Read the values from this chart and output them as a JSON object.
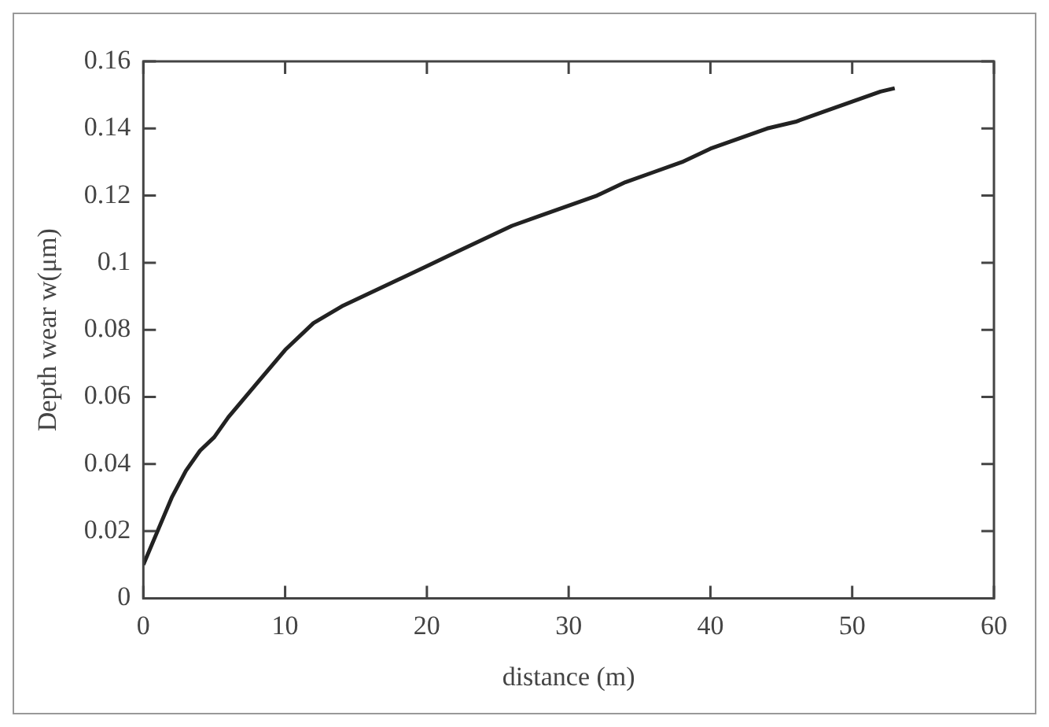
{
  "chart_data": {
    "type": "line",
    "xlabel": "distance (m)",
    "ylabel": "Depth wear w(μm)",
    "x": [
      0,
      1,
      2,
      3,
      4,
      5,
      6,
      8,
      10,
      12,
      14,
      16,
      18,
      20,
      22,
      24,
      26,
      28,
      30,
      32,
      34,
      36,
      38,
      40,
      42,
      44,
      46,
      48,
      50,
      52,
      53
    ],
    "series": [
      {
        "color": "#222222",
        "values": [
          0.01,
          0.02,
          0.03,
          0.038,
          0.044,
          0.048,
          0.054,
          0.064,
          0.074,
          0.082,
          0.087,
          0.091,
          0.095,
          0.099,
          0.103,
          0.107,
          0.111,
          0.114,
          0.117,
          0.12,
          0.124,
          0.127,
          0.13,
          0.134,
          0.137,
          0.14,
          0.142,
          0.145,
          0.148,
          0.151,
          0.152
        ]
      }
    ],
    "xlim": [
      0,
      60
    ],
    "xticks": [
      0,
      10,
      20,
      30,
      40,
      50,
      60
    ],
    "ylim": [
      0,
      0.16
    ],
    "yticks": [
      0,
      0.02,
      0.04,
      0.06,
      0.08,
      0.1,
      0.12,
      0.14,
      0.16
    ],
    "grid": false,
    "legend": false,
    "marker": "none",
    "line_style": "solid"
  }
}
